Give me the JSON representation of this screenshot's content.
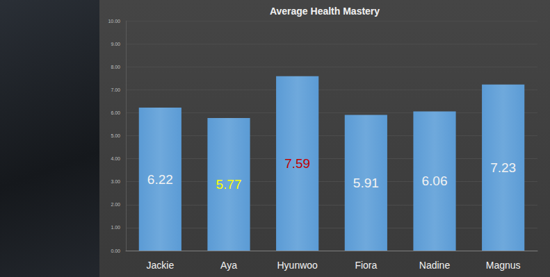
{
  "chart_data": {
    "type": "bar",
    "title": "Average Health Mastery",
    "categories": [
      "Jackie",
      "Aya",
      "Hyunwoo",
      "Fiora",
      "Nadine",
      "Magnus"
    ],
    "values": [
      6.22,
      5.77,
      7.59,
      5.91,
      6.06,
      7.23
    ],
    "color": "#5b9bd5",
    "ylim": [
      0,
      10
    ],
    "yticks": [
      {
        "value": 0,
        "label": "0.00"
      },
      {
        "value": 1,
        "label": "1.00"
      },
      {
        "value": 2,
        "label": "2.00"
      },
      {
        "value": 3,
        "label": "3.00"
      },
      {
        "value": 4,
        "label": "4.00"
      },
      {
        "value": 5,
        "label": "5.00"
      },
      {
        "value": 6,
        "label": "6.00"
      },
      {
        "value": 7,
        "label": "7.00"
      },
      {
        "value": 8,
        "label": "8.00"
      },
      {
        "value": 9,
        "label": "9.00"
      },
      {
        "value": 10,
        "label": "10.00"
      }
    ],
    "grid": true,
    "data_labels": true
  }
}
